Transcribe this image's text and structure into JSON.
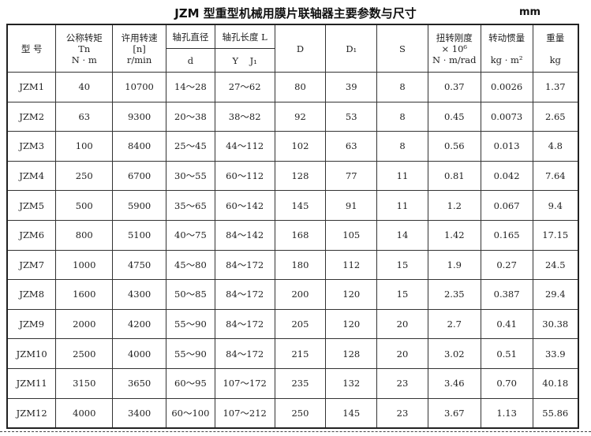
{
  "title": "JZM 型重型机械用膜片联轴器主要参数与尺寸",
  "unit": "mm",
  "header": {
    "model": "型 号",
    "torque": [
      "公称转矩",
      "Tn",
      "N · m"
    ],
    "speed": [
      "许用转速",
      "[n]",
      "r/min"
    ],
    "bore": [
      "轴孔直径",
      "d"
    ],
    "length": [
      "轴孔长度 L",
      "Y    J₁"
    ],
    "D": "D",
    "D1": "D₁",
    "S": "S",
    "stiffness": [
      "扭转刚度",
      "× 10⁶",
      "N · m/rad"
    ],
    "inertia": [
      "转动惯量",
      "kg · m²"
    ],
    "weight": [
      "重量",
      "kg"
    ]
  },
  "rows": [
    [
      "JZM1",
      "40",
      "10700",
      "14～28",
      "27～62",
      "80",
      "39",
      "8",
      "0.37",
      "0.0026",
      "1.37"
    ],
    [
      "JZM2",
      "63",
      "9300",
      "20～38",
      "38～82",
      "92",
      "53",
      "8",
      "0.45",
      "0.0073",
      "2.65"
    ],
    [
      "JZM3",
      "100",
      "8400",
      "25～45",
      "44～112",
      "102",
      "63",
      "8",
      "0.56",
      "0.013",
      "4.8"
    ],
    [
      "JZM4",
      "250",
      "6700",
      "30～55",
      "60～112",
      "128",
      "77",
      "11",
      "0.81",
      "0.042",
      "7.64"
    ],
    [
      "JZM5",
      "500",
      "5900",
      "35～65",
      "60～142",
      "145",
      "91",
      "11",
      "1.2",
      "0.067",
      "9.4"
    ],
    [
      "JZM6",
      "800",
      "5100",
      "40～75",
      "84～142",
      "168",
      "105",
      "14",
      "1.42",
      "0.165",
      "17.15"
    ],
    [
      "JZM7",
      "1000",
      "4750",
      "45～80",
      "84～172",
      "180",
      "112",
      "15",
      "1.9",
      "0.27",
      "24.5"
    ],
    [
      "JZM8",
      "1600",
      "4300",
      "50～85",
      "84～172",
      "200",
      "120",
      "15",
      "2.35",
      "0.387",
      "29.4"
    ],
    [
      "JZM9",
      "2000",
      "4200",
      "55～90",
      "84～172",
      "205",
      "120",
      "20",
      "2.7",
      "0.41",
      "30.38"
    ],
    [
      "JZM10",
      "2500",
      "4000",
      "55～90",
      "84～172",
      "215",
      "128",
      "20",
      "3.02",
      "0.51",
      "33.9"
    ],
    [
      "JZM11",
      "3150",
      "3650",
      "60～95",
      "107～172",
      "235",
      "132",
      "23",
      "3.46",
      "0.70",
      "40.18"
    ],
    [
      "JZM12",
      "4000",
      "3400",
      "60～100",
      "107～212",
      "250",
      "145",
      "23",
      "3.67",
      "1.13",
      "55.86"
    ]
  ]
}
